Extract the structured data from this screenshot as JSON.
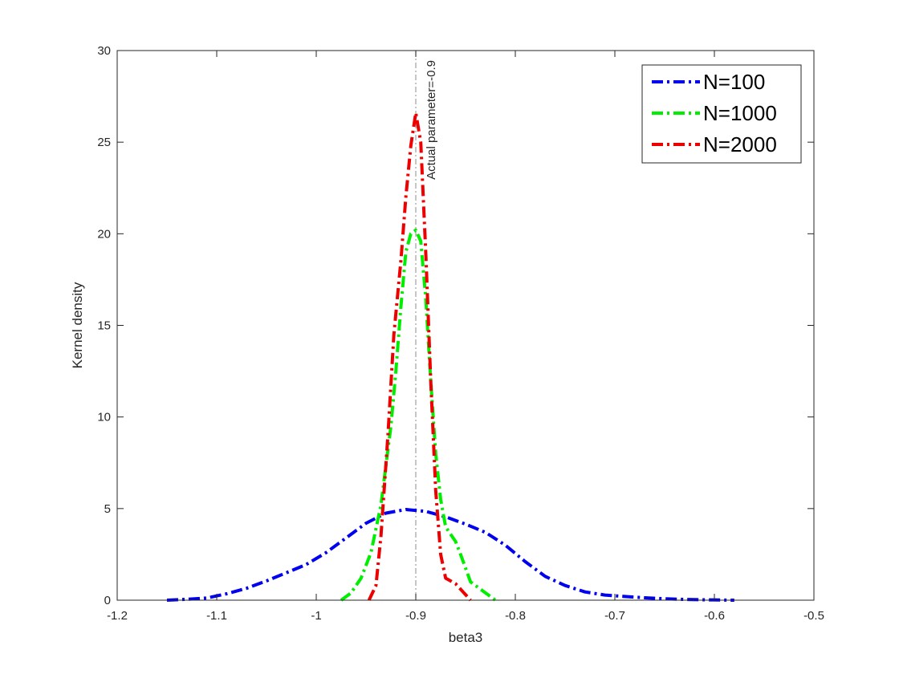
{
  "chart_data": {
    "type": "line",
    "title": "",
    "xlabel": "beta3",
    "ylabel": "Kernel density",
    "xlim": [
      -1.2,
      -0.5
    ],
    "ylim": [
      0,
      30
    ],
    "xticks": [
      -1.2,
      -1.1,
      -1,
      -0.9,
      -0.8,
      -0.7,
      -0.6,
      -0.5
    ],
    "xtick_labels": [
      "-1.2",
      "-1.1",
      "-1",
      "-0.9",
      "-0.8",
      "-0.7",
      "-0.6",
      "-0.5"
    ],
    "yticks": [
      0,
      5,
      10,
      15,
      20,
      25,
      30
    ],
    "ytick_labels": [
      "0",
      "5",
      "10",
      "15",
      "20",
      "25",
      "30"
    ],
    "grid": false,
    "legend_position": "top-right",
    "reference_line": {
      "x": -0.9,
      "label": "Actual parameter=-0.9",
      "color": "#a0a0a0"
    },
    "series": [
      {
        "name": "N=100",
        "color": "#0000ee",
        "x": [
          -1.15,
          -1.13,
          -1.11,
          -1.09,
          -1.07,
          -1.05,
          -1.03,
          -1.01,
          -0.99,
          -0.97,
          -0.95,
          -0.93,
          -0.91,
          -0.89,
          -0.87,
          -0.85,
          -0.83,
          -0.81,
          -0.79,
          -0.77,
          -0.75,
          -0.73,
          -0.71,
          -0.69,
          -0.67,
          -0.65,
          -0.63,
          -0.61,
          -0.58
        ],
        "y": [
          0.0,
          0.05,
          0.12,
          0.35,
          0.65,
          1.05,
          1.5,
          1.95,
          2.6,
          3.4,
          4.2,
          4.75,
          4.95,
          4.85,
          4.55,
          4.15,
          3.7,
          3.0,
          2.1,
          1.3,
          0.8,
          0.45,
          0.28,
          0.2,
          0.13,
          0.08,
          0.04,
          0.02,
          0.0
        ]
      },
      {
        "name": "N=1000",
        "color": "#00ee00",
        "x": [
          -0.975,
          -0.965,
          -0.955,
          -0.945,
          -0.935,
          -0.925,
          -0.92,
          -0.915,
          -0.91,
          -0.905,
          -0.9,
          -0.895,
          -0.89,
          -0.885,
          -0.88,
          -0.875,
          -0.87,
          -0.86,
          -0.855,
          -0.845,
          -0.835,
          -0.825,
          -0.82
        ],
        "y": [
          0.0,
          0.4,
          1.2,
          2.6,
          5.2,
          9.5,
          12.5,
          16.0,
          19.0,
          20.0,
          20.2,
          19.6,
          16.5,
          12.0,
          8.0,
          5.5,
          4.0,
          3.2,
          2.5,
          1.0,
          0.6,
          0.2,
          0.0
        ]
      },
      {
        "name": "N=2000",
        "color": "#ee0000",
        "x": [
          -0.947,
          -0.94,
          -0.935,
          -0.928,
          -0.922,
          -0.915,
          -0.91,
          -0.905,
          -0.9,
          -0.895,
          -0.89,
          -0.885,
          -0.88,
          -0.875,
          -0.87,
          -0.86,
          -0.855,
          -0.85,
          -0.845
        ],
        "y": [
          0.0,
          0.8,
          3.5,
          9.0,
          14.5,
          18.5,
          22.0,
          24.8,
          26.6,
          25.0,
          19.0,
          12.0,
          6.0,
          2.5,
          1.2,
          0.9,
          0.6,
          0.3,
          0.0
        ]
      }
    ]
  }
}
